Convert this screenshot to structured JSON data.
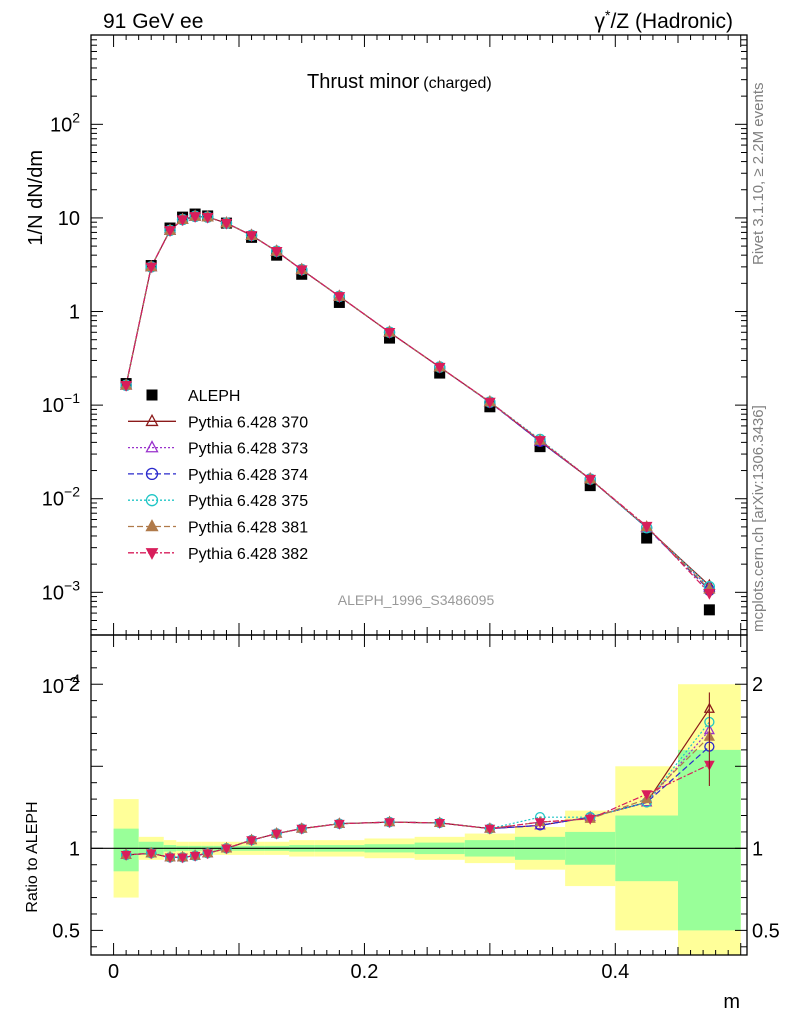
{
  "header": {
    "left": "91 GeV ee",
    "right_html_base": "γ*/Z (Hadronic)"
  },
  "side_labels": {
    "top": "Rivet 3.1.10, ≥ 2.2M events",
    "bottom": "mcplots.cern.ch [arXiv:1306.3436]"
  },
  "chart_data": [
    {
      "type": "scatter",
      "title": "Thrust minor",
      "title_suffix": "(charged)",
      "ylabel": "1/N dN/dm",
      "xlabel": "m",
      "log_y": true,
      "xlim": [
        -0.018,
        0.505
      ],
      "ylim": [
        0.00035,
        900
      ],
      "y_ticks": [
        {
          "v": 0.0001,
          "base": "10",
          "exp": "−4"
        },
        {
          "v": 0.001,
          "base": "10",
          "exp": "−3"
        },
        {
          "v": 0.01,
          "base": "10",
          "exp": "−2"
        },
        {
          "v": 0.1,
          "base": "10",
          "exp": "−1"
        },
        {
          "v": 1,
          "base": "1",
          "exp": ""
        },
        {
          "v": 10,
          "base": "10",
          "exp": ""
        },
        {
          "v": 100,
          "base": "10",
          "exp": "2"
        }
      ],
      "watermark": "ALEPH_1996_S3486095",
      "legend_position": "bottom-left",
      "x": [
        0.01,
        0.03,
        0.045,
        0.055,
        0.065,
        0.075,
        0.09,
        0.11,
        0.13,
        0.15,
        0.18,
        0.22,
        0.26,
        0.3,
        0.34,
        0.38,
        0.425,
        0.475
      ],
      "series": [
        {
          "name": "ALEPH",
          "color": "#000000",
          "marker": "square",
          "values": [
            0.17,
            3.1,
            7.8,
            10.2,
            11.0,
            10.5,
            8.8,
            6.2,
            4.0,
            2.5,
            1.25,
            0.52,
            0.22,
            0.096,
            0.036,
            0.0138,
            0.0038,
            0.00065
          ]
        },
        {
          "name": "Pythia 6.428 370",
          "color": "#8b1a1a",
          "marker": "triangle-open",
          "dash": "",
          "values": [
            0.163,
            3.0,
            7.35,
            9.6,
            10.4,
            10.2,
            8.8,
            6.5,
            4.4,
            2.8,
            1.45,
            0.6,
            0.255,
            0.108,
            0.041,
            0.0162,
            0.0049,
            0.00118
          ]
        },
        {
          "name": "Pythia 6.428 373",
          "color": "#9932cc",
          "marker": "triangle-open",
          "dash": "2,2",
          "values": [
            0.163,
            3.0,
            7.35,
            9.6,
            10.4,
            10.2,
            8.8,
            6.5,
            4.4,
            2.8,
            1.45,
            0.6,
            0.255,
            0.108,
            0.041,
            0.0163,
            0.0049,
            0.00112
          ]
        },
        {
          "name": "Pythia 6.428 374",
          "color": "#2929cc",
          "marker": "circle-open",
          "dash": "6,3",
          "values": [
            0.163,
            3.0,
            7.35,
            9.6,
            10.4,
            10.2,
            8.8,
            6.5,
            4.4,
            2.8,
            1.45,
            0.6,
            0.255,
            0.107,
            0.041,
            0.0162,
            0.0049,
            0.00105
          ]
        },
        {
          "name": "Pythia 6.428 375",
          "color": "#20c6c6",
          "marker": "circle-open",
          "dash": "2,2",
          "values": [
            0.163,
            3.0,
            7.35,
            9.6,
            10.4,
            10.2,
            8.8,
            6.5,
            4.4,
            2.8,
            1.45,
            0.6,
            0.255,
            0.108,
            0.043,
            0.0162,
            0.0049,
            0.00115
          ]
        },
        {
          "name": "Pythia 6.428 381",
          "color": "#b07a4a",
          "marker": "triangle-filled",
          "dash": "6,3",
          "values": [
            0.163,
            3.0,
            7.35,
            9.6,
            10.4,
            10.2,
            8.8,
            6.5,
            4.4,
            2.8,
            1.45,
            0.6,
            0.255,
            0.108,
            0.042,
            0.0162,
            0.005,
            0.00108
          ]
        },
        {
          "name": "Pythia 6.428 382",
          "color": "#d81e5b",
          "marker": "triangle-down-filled",
          "dash": "6,2,2,2",
          "values": [
            0.163,
            3.0,
            7.35,
            9.6,
            10.4,
            10.2,
            8.8,
            6.5,
            4.4,
            2.8,
            1.45,
            0.6,
            0.255,
            0.108,
            0.042,
            0.0162,
            0.0051,
            0.00098
          ]
        }
      ]
    },
    {
      "type": "scatter",
      "ylabel": "Ratio to ALEPH",
      "xlabel": "m",
      "xlim": [
        -0.018,
        0.505
      ],
      "ylim": [
        0.35,
        2.3
      ],
      "y_tick_labels": [
        {
          "v": 0.5,
          "t": "0.5"
        },
        {
          "v": 1,
          "t": "1"
        },
        {
          "v": 2,
          "t": "2"
        }
      ],
      "x_tick_labels": [
        {
          "v": 0,
          "t": "0"
        },
        {
          "v": 0.2,
          "t": "0.2"
        },
        {
          "v": 0.4,
          "t": "0.4"
        }
      ],
      "bins": [
        [
          0.0,
          0.02
        ],
        [
          0.02,
          0.04
        ],
        [
          0.04,
          0.05
        ],
        [
          0.05,
          0.06
        ],
        [
          0.06,
          0.07
        ],
        [
          0.07,
          0.08
        ],
        [
          0.08,
          0.1
        ],
        [
          0.1,
          0.12
        ],
        [
          0.12,
          0.14
        ],
        [
          0.14,
          0.16
        ],
        [
          0.16,
          0.2
        ],
        [
          0.2,
          0.24
        ],
        [
          0.24,
          0.28
        ],
        [
          0.28,
          0.32
        ],
        [
          0.32,
          0.36
        ],
        [
          0.36,
          0.4
        ],
        [
          0.4,
          0.45
        ],
        [
          0.45,
          0.5
        ]
      ],
      "band_stat": [
        [
          0.86,
          1.12
        ],
        [
          0.96,
          1.04
        ],
        [
          0.98,
          1.02
        ],
        [
          0.985,
          1.015
        ],
        [
          0.985,
          1.015
        ],
        [
          0.985,
          1.015
        ],
        [
          0.985,
          1.015
        ],
        [
          0.985,
          1.015
        ],
        [
          0.985,
          1.015
        ],
        [
          0.98,
          1.02
        ],
        [
          0.98,
          1.02
        ],
        [
          0.975,
          1.025
        ],
        [
          0.965,
          1.035
        ],
        [
          0.95,
          1.05
        ],
        [
          0.93,
          1.07
        ],
        [
          0.9,
          1.1
        ],
        [
          0.8,
          1.2
        ],
        [
          0.5,
          1.6
        ]
      ],
      "band_total": [
        [
          0.7,
          1.3
        ],
        [
          0.93,
          1.07
        ],
        [
          0.95,
          1.05
        ],
        [
          0.96,
          1.04
        ],
        [
          0.96,
          1.04
        ],
        [
          0.96,
          1.04
        ],
        [
          0.96,
          1.04
        ],
        [
          0.96,
          1.04
        ],
        [
          0.96,
          1.04
        ],
        [
          0.95,
          1.05
        ],
        [
          0.95,
          1.05
        ],
        [
          0.94,
          1.06
        ],
        [
          0.93,
          1.07
        ],
        [
          0.91,
          1.09
        ],
        [
          0.87,
          1.13
        ],
        [
          0.77,
          1.23
        ],
        [
          0.5,
          1.5
        ],
        [
          0.35,
          2.0
        ]
      ],
      "band_colors": {
        "total": "#ffff99",
        "stat": "#99ff99"
      },
      "x": [
        0.01,
        0.03,
        0.045,
        0.055,
        0.065,
        0.075,
        0.09,
        0.11,
        0.13,
        0.15,
        0.18,
        0.22,
        0.26,
        0.3,
        0.34,
        0.38,
        0.425,
        0.475
      ],
      "series": [
        {
          "name": "Pythia 6.428 370",
          "values": [
            0.96,
            0.97,
            0.945,
            0.945,
            0.955,
            0.97,
            1.0,
            1.05,
            1.09,
            1.12,
            1.15,
            1.16,
            1.155,
            1.12,
            1.14,
            1.19,
            1.28,
            1.85
          ]
        },
        {
          "name": "Pythia 6.428 373",
          "values": [
            0.96,
            0.97,
            0.945,
            0.945,
            0.955,
            0.97,
            1.0,
            1.05,
            1.09,
            1.12,
            1.15,
            1.16,
            1.155,
            1.12,
            1.14,
            1.19,
            1.28,
            1.72
          ]
        },
        {
          "name": "Pythia 6.428 374",
          "values": [
            0.96,
            0.97,
            0.945,
            0.945,
            0.955,
            0.97,
            1.0,
            1.05,
            1.09,
            1.12,
            1.15,
            1.16,
            1.155,
            1.12,
            1.14,
            1.19,
            1.28,
            1.62
          ]
        },
        {
          "name": "Pythia 6.428 375",
          "values": [
            0.96,
            0.97,
            0.945,
            0.945,
            0.955,
            0.97,
            1.0,
            1.05,
            1.09,
            1.12,
            1.15,
            1.16,
            1.155,
            1.12,
            1.19,
            1.19,
            1.28,
            1.77
          ]
        },
        {
          "name": "Pythia 6.428 381",
          "values": [
            0.96,
            0.97,
            0.945,
            0.945,
            0.955,
            0.97,
            1.0,
            1.05,
            1.09,
            1.12,
            1.15,
            1.16,
            1.155,
            1.12,
            1.16,
            1.18,
            1.3,
            1.68
          ]
        },
        {
          "name": "Pythia 6.428 382",
          "values": [
            0.96,
            0.97,
            0.945,
            0.945,
            0.955,
            0.97,
            1.0,
            1.05,
            1.09,
            1.12,
            1.15,
            1.16,
            1.155,
            1.12,
            1.16,
            1.18,
            1.33,
            1.51
          ]
        }
      ]
    }
  ]
}
